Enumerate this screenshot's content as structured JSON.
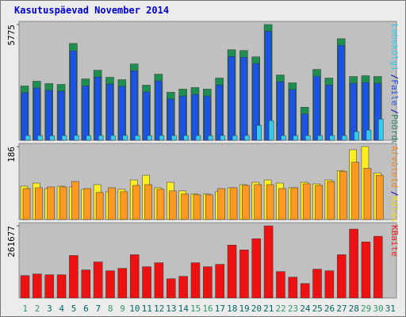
{
  "title": "Kasutuspäevad November 2014",
  "legend_separator": "/",
  "categories": [
    "1",
    "2",
    "3",
    "4",
    "5",
    "6",
    "7",
    "8",
    "9",
    "10",
    "11",
    "12",
    "13",
    "14",
    "15",
    "16",
    "17",
    "18",
    "19",
    "20",
    "21",
    "22",
    "23",
    "24",
    "25",
    "26",
    "27",
    "28",
    "29",
    "30",
    "31"
  ],
  "highlighted_categories": [
    "1",
    "2",
    "8",
    "9",
    "15",
    "16",
    "22",
    "23",
    "29",
    "30"
  ],
  "category_color": "#006666",
  "highlight_color": "#339966",
  "chart_data": [
    {
      "type": "bar",
      "ylim": [
        0,
        5775
      ],
      "yticks": [
        5775
      ],
      "series": [
        {
          "name": "Pöördumisi",
          "color": "#1f8f4f",
          "label_color": "#338866",
          "values": [
            2711,
            2947,
            2829,
            2789,
            4832,
            3064,
            3496,
            3143,
            3025,
            3811,
            2750,
            3300,
            2396,
            2554,
            2632,
            2554,
            3104,
            4518,
            4479,
            4164,
            5775,
            3261,
            2868,
            1650,
            3536,
            3104,
            5068,
            3182,
            3221,
            3182,
            0
          ]
        },
        {
          "name": "Faile",
          "color": "#1c52e6",
          "label_color": "#2255dd",
          "values": [
            2530,
            2770,
            2650,
            2610,
            4620,
            2880,
            3320,
            2960,
            2850,
            3630,
            2570,
            3120,
            2220,
            2370,
            2450,
            2370,
            2920,
            4340,
            4300,
            3990,
            5600,
            3080,
            2690,
            1470,
            3360,
            2920,
            4890,
            3000,
            3040,
            3000,
            0
          ]
        },
        {
          "name": "Lehekülgi",
          "color": "#33ccee",
          "label_color": "#33ccee",
          "values": [
            236,
            240,
            230,
            236,
            240,
            236,
            236,
            236,
            240,
            236,
            236,
            236,
            236,
            236,
            236,
            236,
            236,
            236,
            240,
            746,
            982,
            236,
            236,
            236,
            236,
            236,
            236,
            432,
            511,
            1061,
            0
          ]
        }
      ]
    },
    {
      "type": "bar",
      "ylim": [
        0,
        186
      ],
      "yticks": [
        186
      ],
      "series": [
        {
          "name": "Külastusi",
          "color": "#ffee22",
          "label_color": "#eedd22",
          "values": [
            85,
            93,
            79,
            85,
            83,
            77,
            89,
            71,
            77,
            101,
            113,
            81,
            95,
            73,
            65,
            65,
            71,
            81,
            89,
            95,
            101,
            93,
            81,
            95,
            91,
            101,
            125,
            178,
            186,
            119,
            0
          ]
        },
        {
          "name": "Arvuteid",
          "color": "#ff9922",
          "label_color": "#ee8822",
          "values": [
            79,
            81,
            83,
            83,
            97,
            79,
            69,
            81,
            71,
            87,
            89,
            77,
            73,
            65,
            63,
            63,
            79,
            81,
            87,
            89,
            89,
            79,
            81,
            91,
            87,
            97,
            123,
            146,
            131,
            113,
            0
          ]
        }
      ]
    },
    {
      "type": "bar",
      "ylim": [
        0,
        261677
      ],
      "yticks": [
        261677
      ],
      "series": [
        {
          "name": "KBaite",
          "color": "#ee1111",
          "label_color": "#ee2222",
          "values": [
            81410,
            87225,
            84318,
            84318,
            154098,
            101763,
            130838,
            98855,
            107578,
            157005,
            113393,
            127930,
            69780,
            78503,
            127930,
            113393,
            122115,
            191895,
            174450,
            215155,
            261677,
            95948,
            75595,
            52335,
            104670,
            98855,
            157005,
            250045,
            203525,
            223878,
            0
          ]
        }
      ]
    }
  ]
}
